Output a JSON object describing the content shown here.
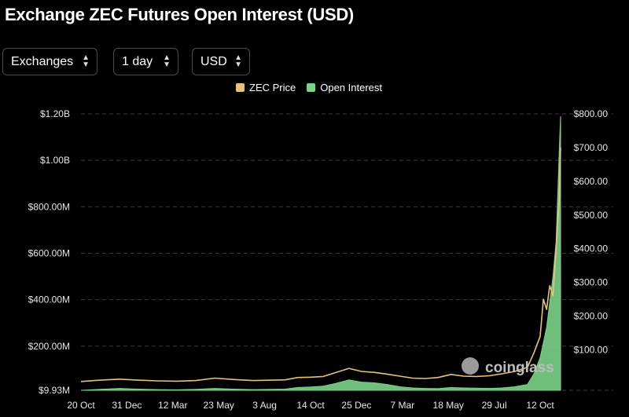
{
  "title": "Exchange ZEC Futures Open Interest (USD)",
  "controls": [
    {
      "label": "Exchanges"
    },
    {
      "label": "1 day"
    },
    {
      "label": "USD"
    }
  ],
  "legend": [
    {
      "label": "ZEC Price",
      "color": "#e8c27a"
    },
    {
      "label": "Open Interest",
      "color": "#7bd389"
    }
  ],
  "watermark": "coinglass",
  "chart_data": {
    "type": "area",
    "x_tick_labels": [
      "20 Oct",
      "31 Dec",
      "12 Mar",
      "23 May",
      "3 Aug",
      "14 Oct",
      "25 Dec",
      "7 Mar",
      "18 May",
      "29 Jul",
      "12 Oct"
    ],
    "y_left_tick_labels": [
      "$9.93M",
      "$200.00M",
      "$400.00M",
      "$600.00M",
      "$800.00M",
      "$1.00B",
      "$1.20B"
    ],
    "y_left_ticks": [
      9930000,
      200000000,
      400000000,
      600000000,
      800000000,
      1000000000,
      1200000000
    ],
    "y_right_tick_labels": [
      "$100.00",
      "$200.00",
      "$300.00",
      "$400.00",
      "$500.00",
      "$600.00",
      "$700.00",
      "$800.00"
    ],
    "y_right_ticks": [
      100,
      200,
      300,
      400,
      500,
      600,
      700,
      800
    ],
    "ylim_left": [
      9930000,
      1200000000
    ],
    "ylim_right": [
      -20,
      800
    ],
    "grid": "horizontal-dashed",
    "legend_position": "top-center",
    "x_tick_index": [
      0,
      72,
      144,
      216,
      288,
      360,
      432,
      504,
      576,
      648,
      720
    ],
    "series": [
      {
        "name": "Open Interest",
        "axis": "left",
        "color": "#7bd389",
        "points": [
          [
            0,
            10000000
          ],
          [
            30,
            14000000
          ],
          [
            60,
            18000000
          ],
          [
            90,
            15000000
          ],
          [
            120,
            13000000
          ],
          [
            150,
            12000000
          ],
          [
            180,
            14000000
          ],
          [
            210,
            18000000
          ],
          [
            240,
            15000000
          ],
          [
            270,
            13000000
          ],
          [
            300,
            14000000
          ],
          [
            320,
            15000000
          ],
          [
            340,
            22000000
          ],
          [
            360,
            24000000
          ],
          [
            380,
            28000000
          ],
          [
            400,
            40000000
          ],
          [
            420,
            55000000
          ],
          [
            440,
            45000000
          ],
          [
            460,
            42000000
          ],
          [
            480,
            35000000
          ],
          [
            500,
            25000000
          ],
          [
            520,
            20000000
          ],
          [
            540,
            18000000
          ],
          [
            560,
            17000000
          ],
          [
            580,
            22000000
          ],
          [
            600,
            20000000
          ],
          [
            620,
            19000000
          ],
          [
            640,
            18000000
          ],
          [
            660,
            20000000
          ],
          [
            680,
            25000000
          ],
          [
            700,
            35000000
          ],
          [
            710,
            80000000
          ],
          [
            720,
            150000000
          ],
          [
            730,
            280000000
          ],
          [
            740,
            500000000
          ],
          [
            745,
            650000000
          ],
          [
            750,
            1050000000
          ],
          [
            752,
            1190000000
          ]
        ]
      },
      {
        "name": "ZEC Price",
        "axis": "right",
        "color": "#e8c27a",
        "points": [
          [
            0,
            6
          ],
          [
            30,
            10
          ],
          [
            60,
            13
          ],
          [
            90,
            10
          ],
          [
            120,
            8
          ],
          [
            150,
            7
          ],
          [
            180,
            9
          ],
          [
            210,
            16
          ],
          [
            240,
            12
          ],
          [
            270,
            9
          ],
          [
            300,
            10
          ],
          [
            320,
            11
          ],
          [
            340,
            18
          ],
          [
            360,
            19
          ],
          [
            380,
            21
          ],
          [
            400,
            33
          ],
          [
            420,
            45
          ],
          [
            440,
            36
          ],
          [
            460,
            33
          ],
          [
            480,
            28
          ],
          [
            500,
            22
          ],
          [
            520,
            16
          ],
          [
            540,
            15
          ],
          [
            560,
            18
          ],
          [
            580,
            27
          ],
          [
            600,
            22
          ],
          [
            620,
            21
          ],
          [
            640,
            23
          ],
          [
            660,
            29
          ],
          [
            680,
            36
          ],
          [
            700,
            48
          ],
          [
            710,
            90
          ],
          [
            720,
            140
          ],
          [
            725,
            250
          ],
          [
            730,
            220
          ],
          [
            735,
            290
          ],
          [
            740,
            260
          ],
          [
            745,
            400
          ],
          [
            750,
            550
          ],
          [
            752,
            700
          ]
        ]
      }
    ]
  }
}
